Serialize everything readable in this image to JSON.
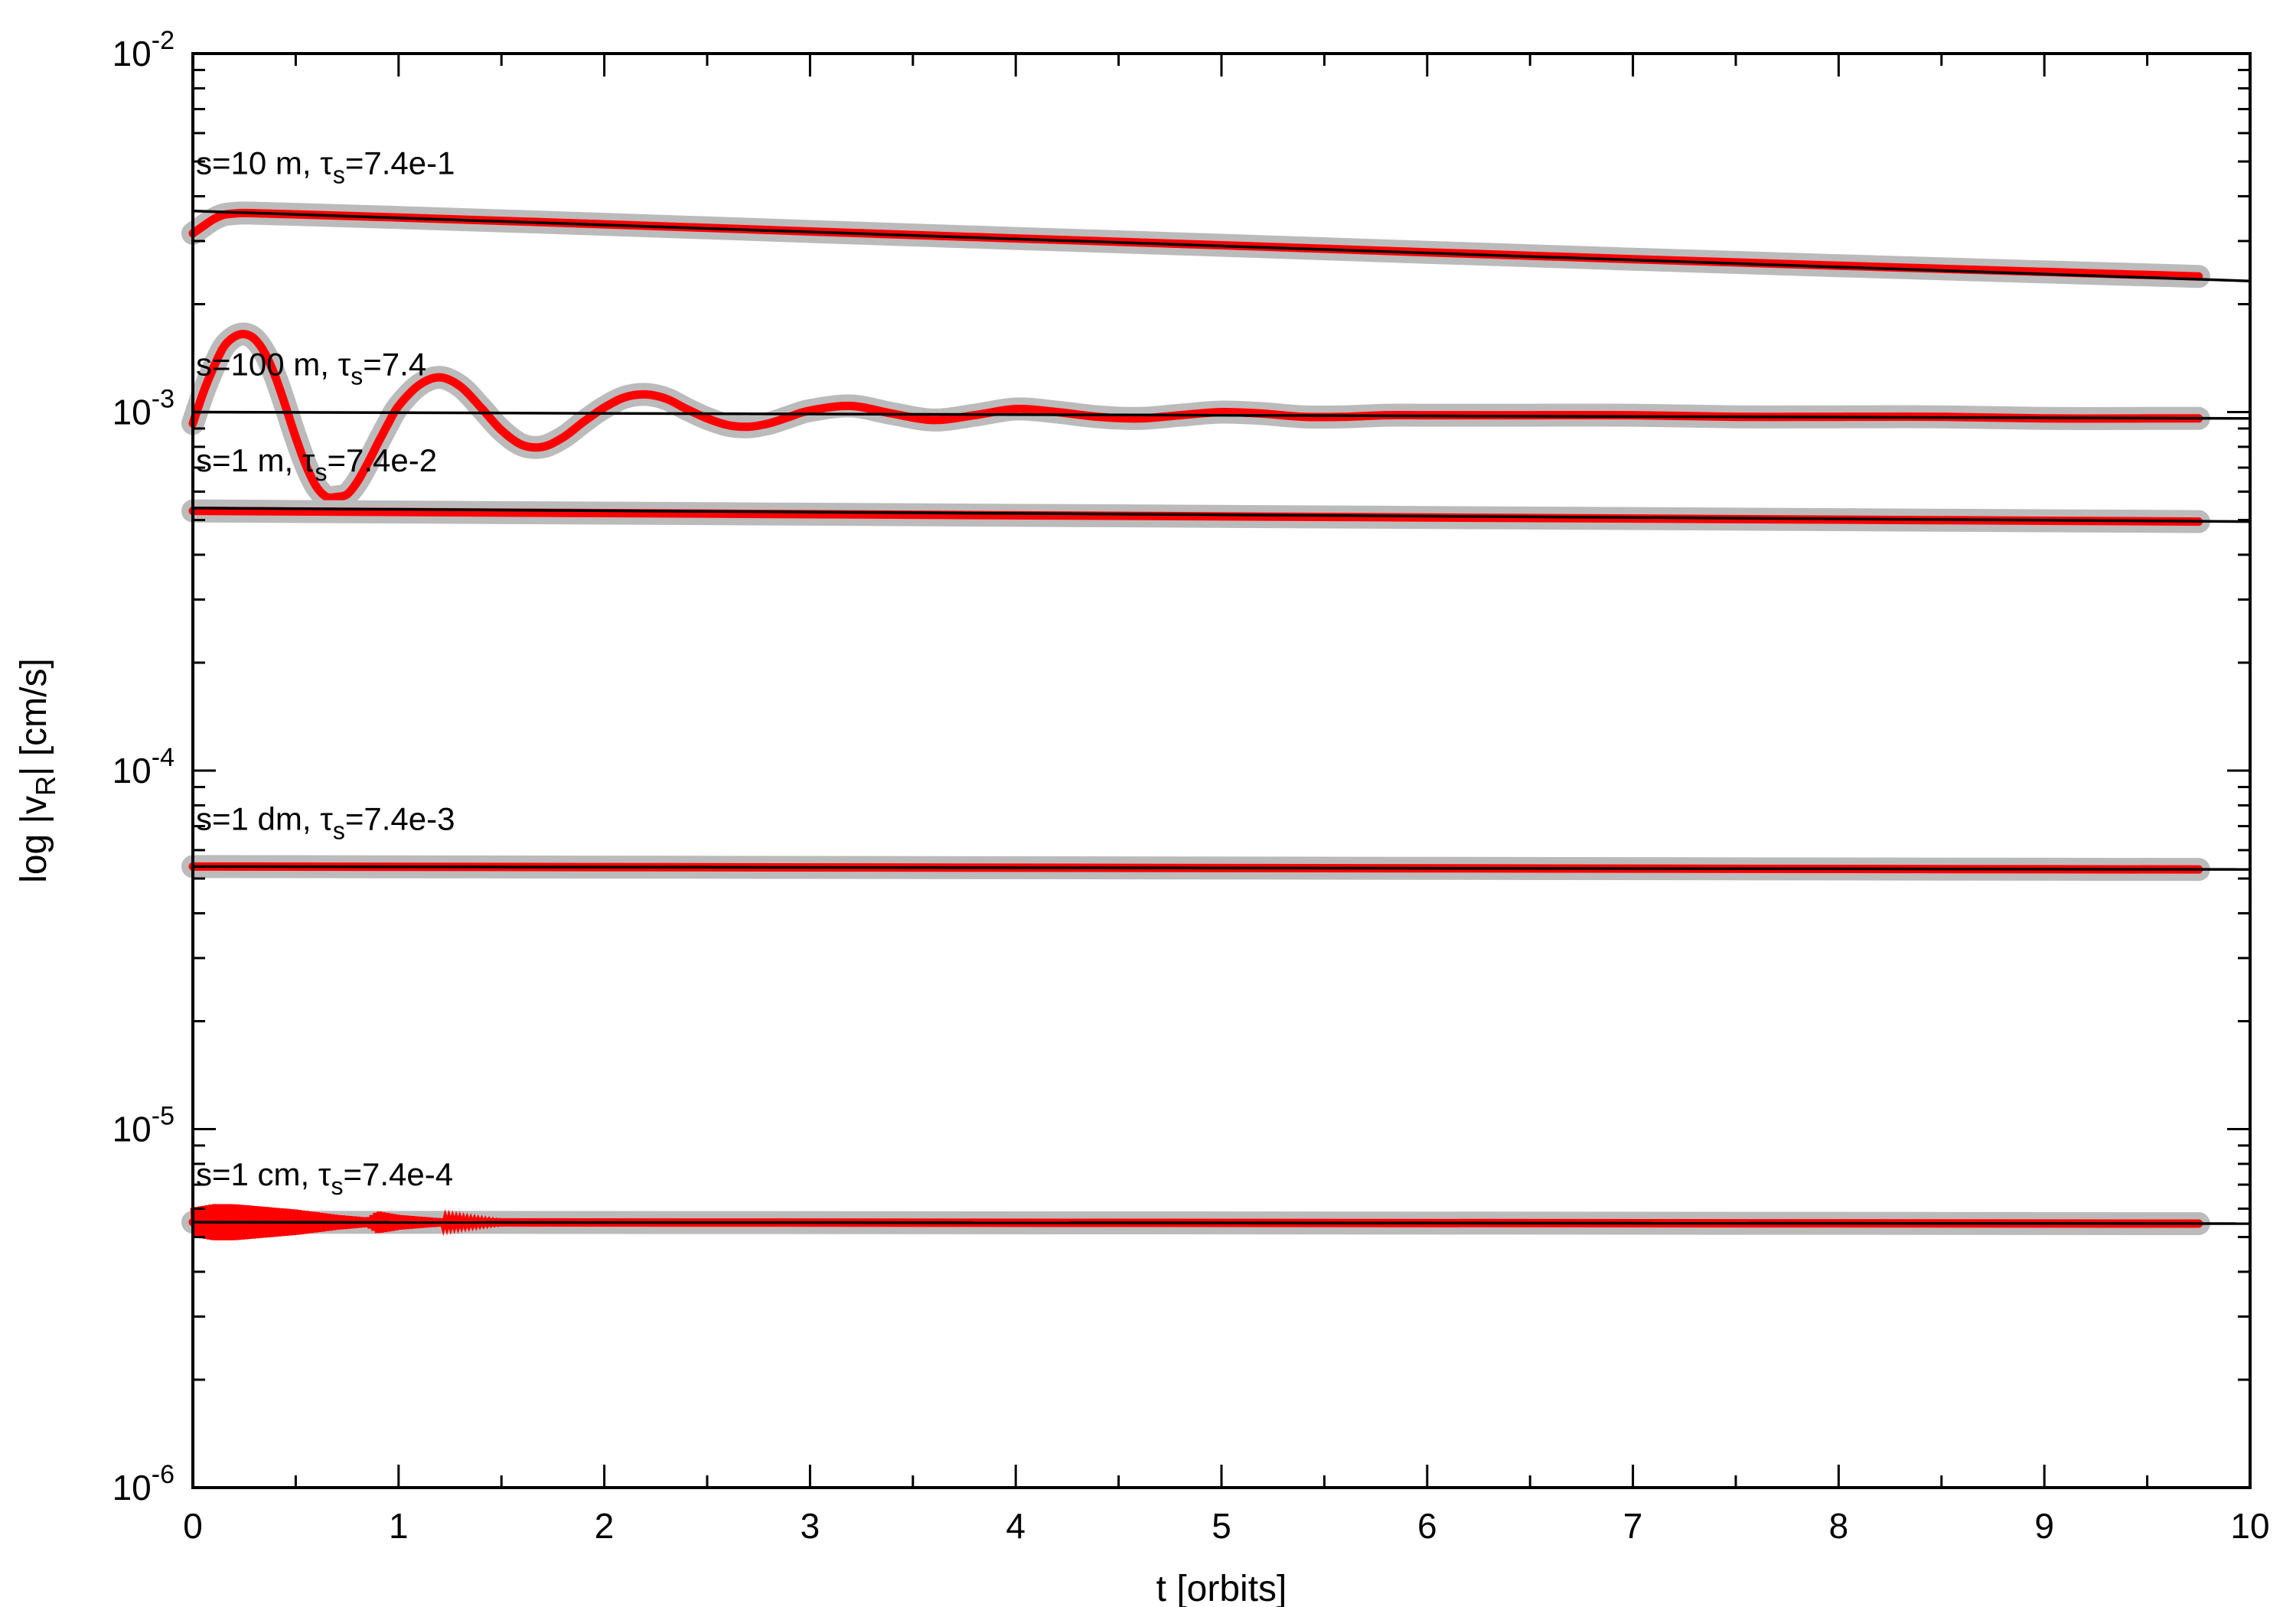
{
  "chart_data": {
    "type": "line",
    "xlabel": "t [orbits]",
    "ylabel": "log |v_R| [cm/s]",
    "ylabel_parts": {
      "pre": "log |v",
      "sub": "R",
      "post": "| [cm/s]"
    },
    "xlim": [
      0,
      10
    ],
    "ylim": [
      1e-06,
      0.01
    ],
    "yscale": "log",
    "grid": false,
    "legend": "none",
    "x_ticks": [
      0,
      1,
      2,
      3,
      4,
      5,
      6,
      7,
      8,
      9,
      10
    ],
    "x_tick_labels": [
      "0",
      "1",
      "2",
      "3",
      "4",
      "5",
      "6",
      "7",
      "8",
      "9",
      "10"
    ],
    "y_ticks": [
      {
        "value": 0.01,
        "base": "10",
        "exp": "-2"
      },
      {
        "value": 0.001,
        "base": "10",
        "exp": "-3"
      },
      {
        "value": 0.0001,
        "base": "10",
        "exp": "-4"
      },
      {
        "value": 1e-05,
        "base": "10",
        "exp": "-5"
      },
      {
        "value": 1e-06,
        "base": "10",
        "exp": "-6"
      }
    ],
    "colors": {
      "simulation": "#ff0000",
      "halo": "#bbbbbb",
      "analytic": "#000000",
      "axes": "#000000"
    },
    "series": [
      {
        "name": "s=10 m, τs=7.4e-1",
        "label_parts": {
          "pre": "s=10 m, ",
          "tau": "τ",
          "sub": "s",
          "post": "=7.4e-1"
        },
        "kind": "smooth",
        "sim": {
          "x": [
            0,
            0.05,
            0.1,
            0.15,
            0.2,
            0.25,
            0.35,
            0.5,
            1,
            2,
            3,
            4,
            5,
            6,
            7,
            8,
            9,
            9.75
          ],
          "y": [
            0.00315,
            0.0033,
            0.00345,
            0.00355,
            0.00358,
            0.00359,
            0.00358,
            0.00356,
            0.00349,
            0.00334,
            0.00319,
            0.00305,
            0.00292,
            0.00279,
            0.00267,
            0.00256,
            0.00246,
            0.00239
          ]
        },
        "analytic": {
          "x": [
            0,
            10
          ],
          "y": [
            0.00364,
            0.00232
          ]
        }
      },
      {
        "name": "s=100 m, τs=7.4",
        "label_parts": {
          "pre": "s=100 m, ",
          "tau": "τ",
          "sub": "s",
          "post": "=7.4"
        },
        "kind": "damped",
        "sim": {
          "x": [
            0,
            0.05,
            0.1,
            0.15,
            0.2,
            0.25,
            0.3,
            0.35,
            0.4,
            0.45,
            0.5,
            0.55,
            0.6,
            0.65,
            0.7,
            0.75,
            0.8,
            0.85,
            0.9,
            0.95,
            1.0,
            1.1,
            1.2,
            1.3,
            1.4,
            1.5,
            1.6,
            1.7,
            1.8,
            1.9,
            2.0,
            2.1,
            2.2,
            2.3,
            2.4,
            2.5,
            2.6,
            2.7,
            2.8,
            2.9,
            3.0,
            3.2,
            3.4,
            3.6,
            3.8,
            4.0,
            4.2,
            4.4,
            4.6,
            4.8,
            5.0,
            5.2,
            5.4,
            5.6,
            5.8,
            6.0,
            6.5,
            7.0,
            7.5,
            8.0,
            8.5,
            9.0,
            9.5,
            9.75
          ],
          "y": [
            0.00093,
            0.00113,
            0.00133,
            0.00152,
            0.00162,
            0.00165,
            0.0016,
            0.00146,
            0.00126,
            0.00104,
            0.00085,
            0.00071,
            0.00062,
            0.00058,
            0.00058,
            0.00059,
            0.00064,
            0.00072,
            0.00082,
            0.00093,
            0.00104,
            0.00119,
            0.00125,
            0.00118,
            0.00103,
            0.00089,
            0.00081,
            0.0008,
            0.00085,
            0.00094,
            0.00103,
            0.0011,
            0.00112,
            0.00109,
            0.00102,
            0.00096,
            0.00092,
            0.00091,
            0.00093,
            0.00097,
            0.00101,
            0.00104,
            0.00099,
            0.00095,
            0.00098,
            0.00102,
            0.001,
            0.00097,
            0.00096,
            0.00098,
            0.001,
            0.00099,
            0.00097,
            0.00097,
            0.00098,
            0.00098,
            0.00098,
            0.00098,
            0.00097,
            0.00097,
            0.00097,
            0.00096,
            0.00096,
            0.00096
          ]
        },
        "analytic": {
          "x": [
            0,
            10
          ],
          "y": [
            0.001,
            0.00096
          ]
        }
      },
      {
        "name": "s=1 m, τs=7.4e-2",
        "label_parts": {
          "pre": "s=1 m, ",
          "tau": "τ",
          "sub": "s",
          "post": "=7.4e-2"
        },
        "kind": "smooth",
        "sim": {
          "x": [
            0,
            9.75
          ],
          "y": [
            0.00053,
            0.000495
          ]
        },
        "analytic": {
          "x": [
            0,
            10
          ],
          "y": [
            0.00054,
            0.000495
          ]
        }
      },
      {
        "name": "s=1 dm, τs=7.4e-3",
        "label_parts": {
          "pre": "s=1 dm, ",
          "tau": "τ",
          "sub": "s",
          "post": "=7.4e-3"
        },
        "kind": "smooth",
        "sim": {
          "x": [
            0,
            9.75
          ],
          "y": [
            5.4e-05,
            5.3e-05
          ]
        },
        "analytic": {
          "x": [
            0,
            10
          ],
          "y": [
            5.4e-05,
            5.3e-05
          ]
        }
      },
      {
        "name": "s=1 cm, τs=7.4e-4",
        "label_parts": {
          "pre": "s=1 cm, ",
          "tau": "τ",
          "sub": "s",
          "post": "=7.4e-4"
        },
        "kind": "oscillating",
        "sim": {
          "x": [
            0,
            9.75
          ],
          "y": [
            5.5e-06,
            5.45e-06
          ]
        },
        "envelope": {
          "x": [
            0,
            0.1,
            0.2,
            0.3,
            0.5,
            0.7,
            0.85,
            0.9,
            1.0,
            1.2,
            1.4,
            1.6
          ],
          "amplitude_dex": [
            0.04,
            0.05,
            0.05,
            0.045,
            0.035,
            0.02,
            0.012,
            0.03,
            0.02,
            0.01,
            0.005,
            0.0
          ]
        },
        "analytic": {
          "x": [
            0,
            10
          ],
          "y": [
            5.5e-06,
            5.45e-06
          ]
        }
      }
    ]
  }
}
